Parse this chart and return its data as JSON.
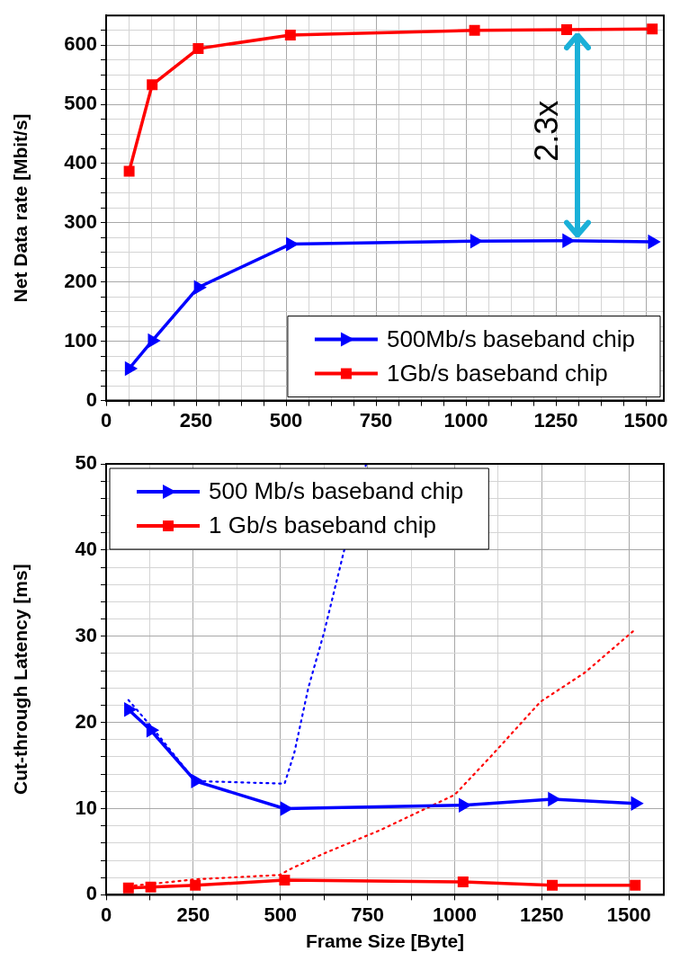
{
  "chart_data": [
    {
      "type": "line",
      "ylabel": "Net Data rate [Mbit/s]",
      "x": [
        64,
        128,
        256,
        512,
        1024,
        1280,
        1518
      ],
      "series": [
        {
          "name": "500Mb/s baseband chip",
          "color": "#0000ff",
          "marker": "triangle",
          "values": [
            54,
            101,
            191,
            264,
            269,
            270,
            268
          ]
        },
        {
          "name": "1Gb/s baseband chip",
          "color": "#ff0000",
          "marker": "square",
          "values": [
            387,
            533,
            594,
            617,
            625,
            626,
            627
          ]
        }
      ],
      "xlim": [
        0,
        1550
      ],
      "xticks": [
        0,
        {
          "value": 62.5,
          "label": null
        },
        {
          "value": 125,
          "label": null
        },
        {
          "value": 187.5,
          "label": null
        },
        250,
        {
          "value": 312.5,
          "label": null
        },
        {
          "value": 375,
          "label": null
        },
        {
          "value": 437.5,
          "label": null
        },
        500,
        {
          "value": 562.5,
          "label": null
        },
        {
          "value": 625,
          "label": null
        },
        {
          "value": 687.5,
          "label": null
        },
        750,
        {
          "value": 812.5,
          "label": null
        },
        {
          "value": 875,
          "label": null
        },
        {
          "value": 937.5,
          "label": null
        },
        1000,
        {
          "value": 1062.5,
          "label": null
        },
        {
          "value": 1125,
          "label": null
        },
        {
          "value": 1187.5,
          "label": null
        },
        1250,
        {
          "value": 1312.5,
          "label": null
        },
        {
          "value": 1375,
          "label": null
        },
        {
          "value": 1437.5,
          "label": null
        },
        1500
      ],
      "ylim": [
        0,
        650
      ],
      "yticks": [
        0,
        {
          "value": 25,
          "label": null
        },
        {
          "value": 50,
          "label": null
        },
        {
          "value": 75,
          "label": null
        },
        100,
        {
          "value": 125,
          "label": null
        },
        {
          "value": 150,
          "label": null
        },
        {
          "value": 175,
          "label": null
        },
        200,
        {
          "value": 225,
          "label": null
        },
        {
          "value": 250,
          "label": null
        },
        {
          "value": 275,
          "label": null
        },
        300,
        {
          "value": 325,
          "label": null
        },
        {
          "value": 350,
          "label": null
        },
        {
          "value": 375,
          "label": null
        },
        400,
        {
          "value": 425,
          "label": null
        },
        {
          "value": 450,
          "label": null
        },
        {
          "value": 475,
          "label": null
        },
        500,
        {
          "value": 525,
          "label": null
        },
        {
          "value": 550,
          "label": null
        },
        {
          "value": 575,
          "label": null
        },
        600,
        {
          "value": 625,
          "label": null
        }
      ],
      "annotations": [
        "2.3x"
      ],
      "grid": true,
      "legend": "bottom right",
      "line_style": "solid"
    },
    {
      "type": "line",
      "xlabel": "Frame Size [Byte]",
      "ylabel": "Cut-through Latency [ms]",
      "x": [
        64,
        128,
        256,
        512,
        1024,
        1280,
        1518
      ],
      "series": [
        {
          "name": "500 Mb/s baseband chip",
          "color": "#0000ff",
          "marker": "triangle",
          "values": [
            21.5,
            19.1,
            13.2,
            10.0,
            10.4,
            11.1,
            10.6
          ]
        },
        {
          "name": "1 Gb/s baseband chip",
          "color": "#ff0000",
          "marker": "square",
          "values": [
            0.8,
            0.9,
            1.1,
            1.7,
            1.5,
            1.1,
            1.1
          ]
        },
        {
          "color": "#0000ff",
          "marker": "none",
          "line_style": "dotted",
          "x": [
            64,
            128,
            256,
            512,
            540,
            580,
            625,
            680,
            746
          ],
          "values": [
            22.6,
            19.6,
            13.2,
            12.9,
            16.5,
            24.0,
            30.4,
            39.5,
            50
          ]
        },
        {
          "color": "#ff0000",
          "marker": "none",
          "line_style": "dotted",
          "x": [
            64,
            256,
            497,
            529,
            625,
            786,
            1000,
            1107,
            1246,
            1374,
            1518
          ],
          "values": [
            1.0,
            1.8,
            2.3,
            3.0,
            4.8,
            7.5,
            11.6,
            16.2,
            22.4,
            25.8,
            30.8
          ]
        }
      ],
      "xlim": [
        0,
        1600
      ],
      "xticks": [
        0,
        {
          "value": 125,
          "label": null
        },
        250,
        {
          "value": 375,
          "label": null
        },
        500,
        {
          "value": 625,
          "label": null
        },
        750,
        {
          "value": 875,
          "label": null
        },
        1000,
        {
          "value": 1125,
          "label": null
        },
        1250,
        {
          "value": 1375,
          "label": null
        },
        1500
      ],
      "ylim": [
        0,
        50
      ],
      "yticks": [
        0,
        {
          "value": 2,
          "label": null
        },
        {
          "value": 4,
          "label": null
        },
        {
          "value": 6,
          "label": null
        },
        {
          "value": 8,
          "label": null
        },
        10,
        {
          "value": 12,
          "label": null
        },
        {
          "value": 14,
          "label": null
        },
        {
          "value": 16,
          "label": null
        },
        {
          "value": 18,
          "label": null
        },
        20,
        {
          "value": 22,
          "label": null
        },
        {
          "value": 24,
          "label": null
        },
        {
          "value": 26,
          "label": null
        },
        {
          "value": 28,
          "label": null
        },
        30,
        {
          "value": 32,
          "label": null
        },
        {
          "value": 34,
          "label": null
        },
        {
          "value": 36,
          "label": null
        },
        {
          "value": 38,
          "label": null
        },
        40,
        {
          "value": 42,
          "label": null
        },
        {
          "value": 44,
          "label": null
        },
        {
          "value": 46,
          "label": null
        },
        {
          "value": 48,
          "label": null
        },
        50
      ],
      "grid": true,
      "legend": "top left",
      "line_style": "solid"
    }
  ]
}
